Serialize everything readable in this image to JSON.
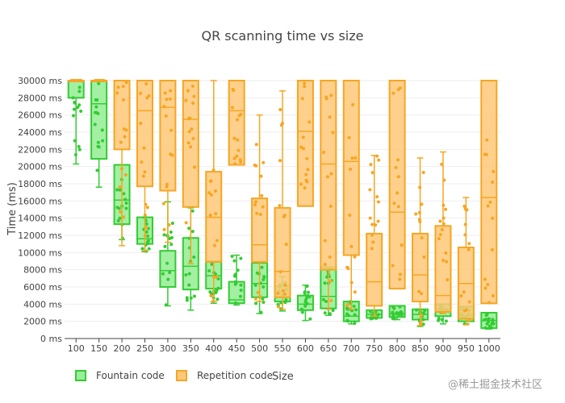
{
  "chart_data": {
    "type": "box",
    "title": "QR scanning time vs size",
    "xlabel": "Size",
    "ylabel": "Time (ms)",
    "ylim": [
      0,
      30000
    ],
    "y_ticks": [
      "0 ms",
      "2000 ms",
      "4000 ms",
      "6000 ms",
      "8000 ms",
      "10000 ms",
      "12000 ms",
      "14000 ms",
      "16000 ms",
      "18000 ms",
      "20000 ms",
      "22000 ms",
      "24000 ms",
      "26000 ms",
      "28000 ms",
      "30000 ms"
    ],
    "categories": [
      "100",
      "150",
      "200",
      "250",
      "300",
      "350",
      "400",
      "450",
      "500",
      "550",
      "600",
      "650",
      "700",
      "750",
      "800",
      "850",
      "900",
      "950",
      "1000"
    ],
    "grid": "horizontal",
    "legend_position": "bottom-left",
    "series": [
      {
        "name": "Fountain code",
        "color": "#33cc33",
        "fill": "#99ee99",
        "boxes": [
          {
            "min": 20300,
            "q1": 28000,
            "median": 30000,
            "q3": 30000,
            "max": 30000
          },
          {
            "min": 17600,
            "q1": 20900,
            "median": 27300,
            "q3": 30000,
            "max": 30000
          },
          {
            "min": 11500,
            "q1": 13300,
            "median": 16100,
            "q3": 20200,
            "max": 20200
          },
          {
            "min": 10100,
            "q1": 11000,
            "median": 11600,
            "q3": 14100,
            "max": 14100
          },
          {
            "min": 3800,
            "q1": 6000,
            "median": 7900,
            "q3": 10200,
            "max": 15900
          },
          {
            "min": 3300,
            "q1": 5700,
            "median": 8400,
            "q3": 11700,
            "max": 15200
          },
          {
            "min": 4100,
            "q1": 5800,
            "median": 7300,
            "q3": 9000,
            "max": 9000
          },
          {
            "min": 3900,
            "q1": 4100,
            "median": 4500,
            "q3": 6600,
            "max": 9700
          },
          {
            "min": 2900,
            "q1": 4800,
            "median": 6400,
            "q3": 8800,
            "max": 8800
          },
          {
            "min": 3200,
            "q1": 4300,
            "median": 4800,
            "q3": 6100,
            "max": 7200
          },
          {
            "min": 2100,
            "q1": 3300,
            "median": 4000,
            "q3": 5000,
            "max": 6200
          },
          {
            "min": 2700,
            "q1": 3500,
            "median": 4900,
            "q3": 8300,
            "max": 8300
          },
          {
            "min": 1700,
            "q1": 2000,
            "median": 2600,
            "q3": 4300,
            "max": 4300
          },
          {
            "min": 2300,
            "q1": 2400,
            "median": 2800,
            "q3": 3300,
            "max": 3300
          },
          {
            "min": 2200,
            "q1": 2500,
            "median": 2900,
            "q3": 3800,
            "max": 3800
          },
          {
            "min": 1400,
            "q1": 2200,
            "median": 2800,
            "q3": 3400,
            "max": 3400
          },
          {
            "min": 1700,
            "q1": 2600,
            "median": 3100,
            "q3": 4000,
            "max": 4000
          },
          {
            "min": 1700,
            "q1": 2000,
            "median": 2700,
            "q3": 3700,
            "max": 3700
          },
          {
            "min": 1100,
            "q1": 1200,
            "median": 2100,
            "q3": 3000,
            "max": 3000
          }
        ]
      },
      {
        "name": "Repetition code",
        "color": "#f5a623",
        "fill": "#ffc877",
        "boxes": [
          {
            "min": 30000,
            "q1": 30000,
            "median": 30000,
            "q3": 30000,
            "max": 30000
          },
          {
            "min": 30000,
            "q1": 30000,
            "median": 30000,
            "q3": 30000,
            "max": 30000
          },
          {
            "min": 10800,
            "q1": 22000,
            "median": 22000,
            "q3": 30000,
            "max": 30000
          },
          {
            "min": 10200,
            "q1": 17700,
            "median": 26500,
            "q3": 30000,
            "max": 30000
          },
          {
            "min": 11200,
            "q1": 17200,
            "median": 26900,
            "q3": 30000,
            "max": 30000
          },
          {
            "min": 8700,
            "q1": 15300,
            "median": 25500,
            "q3": 30000,
            "max": 30000
          },
          {
            "min": 4300,
            "q1": 8900,
            "median": 14100,
            "q3": 19400,
            "max": 30000
          },
          {
            "min": 20200,
            "q1": 20200,
            "median": 26500,
            "q3": 30000,
            "max": 30000
          },
          {
            "min": 4300,
            "q1": 8900,
            "median": 10900,
            "q3": 16300,
            "max": 26000
          },
          {
            "min": 3400,
            "q1": 4800,
            "median": 7800,
            "q3": 15200,
            "max": 28800
          },
          {
            "min": 15400,
            "q1": 15400,
            "median": 24100,
            "q3": 30000,
            "max": 30000
          },
          {
            "min": 3400,
            "q1": 8000,
            "median": 20300,
            "q3": 30000,
            "max": 30000
          },
          {
            "min": 3400,
            "q1": 9700,
            "median": 20600,
            "q3": 30000,
            "max": 30000
          },
          {
            "min": 2600,
            "q1": 3800,
            "median": 6600,
            "q3": 12200,
            "max": 21300
          },
          {
            "min": 5800,
            "q1": 5800,
            "median": 14700,
            "q3": 30000,
            "max": 30000
          },
          {
            "min": 1500,
            "q1": 4300,
            "median": 7400,
            "q3": 12200,
            "max": 21000
          },
          {
            "min": 2900,
            "q1": 3100,
            "median": 5000,
            "q3": 13100,
            "max": 21700
          },
          {
            "min": 1600,
            "q1": 2300,
            "median": 6400,
            "q3": 10600,
            "max": 16400
          },
          {
            "min": 4100,
            "q1": 4100,
            "median": 16400,
            "q3": 30000,
            "max": 30000
          }
        ]
      }
    ]
  },
  "watermark": "@稀土掘金技术社区"
}
